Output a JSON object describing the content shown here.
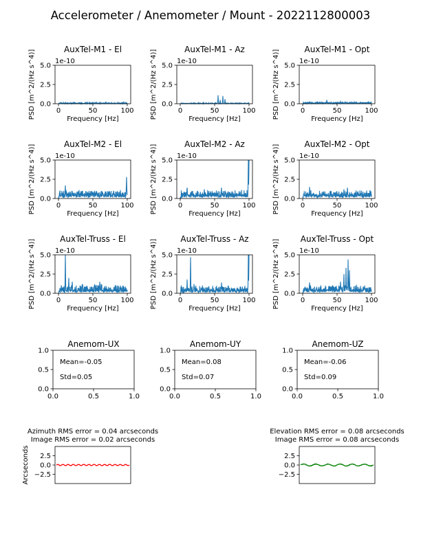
{
  "figure": {
    "title": "Accelerometer / Anemometer / Mount - 2022112800003",
    "colors": {
      "psd_line": "#1f77b4",
      "azimuth_trace": "#ff0000",
      "elevation_trace": "#008000",
      "frame": "#000000"
    }
  },
  "chart_data": [
    {
      "id": "m1_el",
      "type": "line",
      "title": "AuxTel-M1 - El",
      "xlabel": "Frequency [Hz]",
      "ylabel": "PSD [m^2/(Hz s^4)]",
      "xlim": [
        -5,
        105
      ],
      "ylim": [
        0,
        5
      ],
      "xticks": [
        0,
        50,
        100
      ],
      "yticks": [
        0.0,
        2.5,
        5.0
      ],
      "ytick_labels": [
        "0.0",
        "2.5",
        "5.0"
      ],
      "offset_label": "1e-10",
      "profile": {
        "base": 0.03,
        "noise": 0.08,
        "seed": 11,
        "peaks": [
          [
            3,
            0.15
          ],
          [
            30,
            0.12
          ],
          [
            55,
            0.2
          ],
          [
            60,
            0.18
          ],
          [
            95,
            0.2
          ]
        ]
      }
    },
    {
      "id": "m1_az",
      "type": "line",
      "title": "AuxTel-M1 - Az",
      "xlabel": "Frequency [Hz]",
      "ylabel": "PSD [m^2/(Hz s^4)]",
      "xlim": [
        -5,
        105
      ],
      "ylim": [
        0,
        5
      ],
      "xticks": [
        0,
        50,
        100
      ],
      "yticks": [
        0.0,
        2.5,
        5.0
      ],
      "ytick_labels": [
        "0.0",
        "2.5",
        "5.0"
      ],
      "offset_label": "1e-10",
      "profile": {
        "base": 0.02,
        "noise": 0.05,
        "seed": 12,
        "peaks": [
          [
            55,
            1.1
          ],
          [
            58,
            0.5
          ],
          [
            62,
            1.0
          ],
          [
            65,
            0.6
          ],
          [
            100,
            0.15
          ]
        ]
      }
    },
    {
      "id": "m1_opt",
      "type": "line",
      "title": "AuxTel-M1 - Opt",
      "xlabel": "Frequency [Hz]",
      "ylabel": "PSD [m^2/(Hz s^4)]",
      "xlim": [
        -5,
        105
      ],
      "ylim": [
        0,
        5
      ],
      "xticks": [
        0,
        50,
        100
      ],
      "yticks": [
        0.0,
        2.5,
        5.0
      ],
      "ytick_labels": [
        "0.0",
        "2.5",
        "5.0"
      ],
      "offset_label": "1e-10",
      "profile": {
        "base": 0.05,
        "noise": 0.12,
        "seed": 13,
        "peaks": [
          [
            10,
            0.25
          ],
          [
            35,
            0.5
          ],
          [
            55,
            0.3
          ],
          [
            75,
            0.25
          ],
          [
            95,
            0.2
          ]
        ]
      }
    },
    {
      "id": "m2_el",
      "type": "line",
      "title": "AuxTel-M2 - El",
      "xlabel": "Frequency [Hz]",
      "ylabel": "PSD [m^2/(Hz s^4)]",
      "xlim": [
        -5,
        105
      ],
      "ylim": [
        0,
        5
      ],
      "xticks": [
        0,
        50,
        100
      ],
      "yticks": [
        0.0,
        2.5,
        5.0
      ],
      "ytick_labels": [
        "0.0",
        "2.5",
        "5.0"
      ],
      "offset_label": "1e-10",
      "profile": {
        "base": 0.3,
        "noise": 0.5,
        "seed": 21,
        "peaks": [
          [
            10,
            1.7
          ],
          [
            20,
            0.9
          ],
          [
            35,
            1.0
          ],
          [
            55,
            1.0
          ],
          [
            80,
            1.0
          ],
          [
            99,
            2.8
          ]
        ]
      }
    },
    {
      "id": "m2_az",
      "type": "line",
      "title": "AuxTel-M2 - Az",
      "xlabel": "Frequency [Hz]",
      "ylabel": "PSD [m^2/(Hz s^4)]",
      "xlim": [
        -5,
        105
      ],
      "ylim": [
        0,
        5
      ],
      "xticks": [
        0,
        50,
        100
      ],
      "yticks": [
        0.0,
        2.5,
        5.0
      ],
      "ytick_labels": [
        "0.0",
        "2.5",
        "5.0"
      ],
      "offset_label": "1e-10",
      "profile": {
        "base": 0.3,
        "noise": 0.45,
        "seed": 22,
        "peaks": [
          [
            10,
            1.4
          ],
          [
            35,
            1.2
          ],
          [
            60,
            1.4
          ],
          [
            65,
            1.0
          ],
          [
            99,
            5.0
          ],
          [
            100,
            5.0
          ]
        ]
      }
    },
    {
      "id": "m2_opt",
      "type": "line",
      "title": "AuxTel-M2 - Opt",
      "xlabel": "Frequency [Hz]",
      "ylabel": "PSD [m^2/(Hz s^4)]",
      "xlim": [
        -5,
        105
      ],
      "ylim": [
        0,
        5
      ],
      "xticks": [
        0,
        50,
        100
      ],
      "yticks": [
        0.0,
        2.5,
        5.0
      ],
      "ytick_labels": [
        "0.0",
        "2.5",
        "5.0"
      ],
      "offset_label": "1e-10",
      "profile": {
        "base": 0.3,
        "noise": 0.45,
        "seed": 23,
        "peaks": [
          [
            10,
            1.5
          ],
          [
            40,
            1.0
          ],
          [
            60,
            1.2
          ],
          [
            65,
            1.4
          ],
          [
            80,
            0.9
          ],
          [
            98,
            1.0
          ]
        ]
      }
    },
    {
      "id": "truss_el",
      "type": "line",
      "title": "AuxTel-Truss - El",
      "xlabel": "Frequency [Hz]",
      "ylabel": "PSD [m^2/(Hz s^4)]",
      "xlim": [
        -5,
        105
      ],
      "ylim": [
        0,
        5
      ],
      "xticks": [
        0,
        50,
        100
      ],
      "yticks": [
        0.0,
        2.5,
        5.0
      ],
      "ytick_labels": [
        "0.0",
        "2.5",
        "5.0"
      ],
      "offset_label": "1e-10",
      "profile": {
        "base": 0.25,
        "noise": 0.55,
        "seed": 31,
        "peaks": [
          [
            10,
            5.0
          ],
          [
            15,
            2.0
          ],
          [
            20,
            1.5
          ],
          [
            35,
            1.2
          ],
          [
            60,
            1.5
          ],
          [
            62,
            1.2
          ],
          [
            90,
            1.0
          ]
        ]
      }
    },
    {
      "id": "truss_az",
      "type": "line",
      "title": "AuxTel-Truss - Az",
      "xlabel": "Frequency [Hz]",
      "ylabel": "PSD [m^2/(Hz s^4)]",
      "xlim": [
        -5,
        105
      ],
      "ylim": [
        0,
        5
      ],
      "xticks": [
        0,
        50,
        100
      ],
      "yticks": [
        0.0,
        2.5,
        5.0
      ],
      "ytick_labels": [
        "0.0",
        "2.5",
        "5.0"
      ],
      "offset_label": "1e-10",
      "profile": {
        "base": 0.25,
        "noise": 0.45,
        "seed": 32,
        "peaks": [
          [
            10,
            1.8
          ],
          [
            15,
            4.7
          ],
          [
            20,
            1.2
          ],
          [
            60,
            1.4
          ],
          [
            70,
            1.0
          ],
          [
            99,
            5.0
          ],
          [
            100,
            5.0
          ]
        ]
      }
    },
    {
      "id": "truss_opt",
      "type": "line",
      "title": "AuxTel-Truss - Opt",
      "xlabel": "Frequency [Hz]",
      "ylabel": "PSD [m^2/(Hz s^4)]",
      "xlim": [
        -5,
        105
      ],
      "ylim": [
        0,
        5
      ],
      "xticks": [
        0,
        50,
        100
      ],
      "yticks": [
        0.0,
        2.5,
        5.0
      ],
      "ytick_labels": [
        "0.0",
        "2.5",
        "5.0"
      ],
      "offset_label": "1e-10",
      "profile": {
        "base": 0.3,
        "noise": 0.45,
        "seed": 33,
        "peaks": [
          [
            10,
            1.4
          ],
          [
            55,
            1.5
          ],
          [
            60,
            2.5
          ],
          [
            63,
            3.3
          ],
          [
            66,
            4.4
          ],
          [
            68,
            3.0
          ],
          [
            90,
            0.9
          ]
        ]
      }
    },
    {
      "id": "anem_ux",
      "type": "text_panel",
      "title": "Anemom-UX",
      "xlim": [
        0,
        1
      ],
      "ylim": [
        0,
        1
      ],
      "xticks": [
        0.0,
        0.5,
        1.0
      ],
      "yticks": [
        0.0,
        0.5,
        1.0
      ],
      "tick_labels": [
        "0.0",
        "0.5",
        "1.0"
      ],
      "mean_text": "Mean=-0.05",
      "std_text": "Std=0.05"
    },
    {
      "id": "anem_uy",
      "type": "text_panel",
      "title": "Anemom-UY",
      "xlim": [
        0,
        1
      ],
      "ylim": [
        0,
        1
      ],
      "xticks": [
        0.0,
        0.5,
        1.0
      ],
      "yticks": [
        0.0,
        0.5,
        1.0
      ],
      "tick_labels": [
        "0.0",
        "0.5",
        "1.0"
      ],
      "mean_text": "Mean=0.08",
      "std_text": "Std=0.07"
    },
    {
      "id": "anem_uz",
      "type": "text_panel",
      "title": "Anemom-UZ",
      "xlim": [
        0,
        1
      ],
      "ylim": [
        0,
        1
      ],
      "xticks": [
        0.0,
        0.5,
        1.0
      ],
      "yticks": [
        0.0,
        0.5,
        1.0
      ],
      "tick_labels": [
        "0.0",
        "0.5",
        "1.0"
      ],
      "mean_text": "Mean=-0.06",
      "std_text": "Std=0.09"
    },
    {
      "id": "azimuth_err",
      "type": "line",
      "title_line1": "Azimuth RMS error = 0.04 arcseconds",
      "title_line2": "Image RMS error = 0.02 arcseconds",
      "ylabel": "Arcseconds",
      "ylim": [
        -5,
        5
      ],
      "yticks": [
        2.5,
        0.0,
        -2.5
      ],
      "ytick_labels": [
        "2.5",
        "0.0",
        "−2.5"
      ],
      "series": [
        {
          "name": "azimuth",
          "color": "#ff0000",
          "amplitude": 0.15,
          "cycles": 14,
          "seed": 41
        }
      ]
    },
    {
      "id": "elevation_err",
      "type": "line",
      "title_line1": "Elevation RMS error = 0.08 arcseconds",
      "title_line2": "Image RMS error = 0.08 arcseconds",
      "ylabel": "",
      "ylim": [
        -5,
        5
      ],
      "yticks": [
        2.5,
        0.0,
        -2.5
      ],
      "ytick_labels": [
        "2.5",
        "0.0",
        "−2.5"
      ],
      "series": [
        {
          "name": "elevation",
          "color": "#008000",
          "amplitude": 0.25,
          "cycles": 6,
          "seed": 42
        }
      ]
    }
  ]
}
